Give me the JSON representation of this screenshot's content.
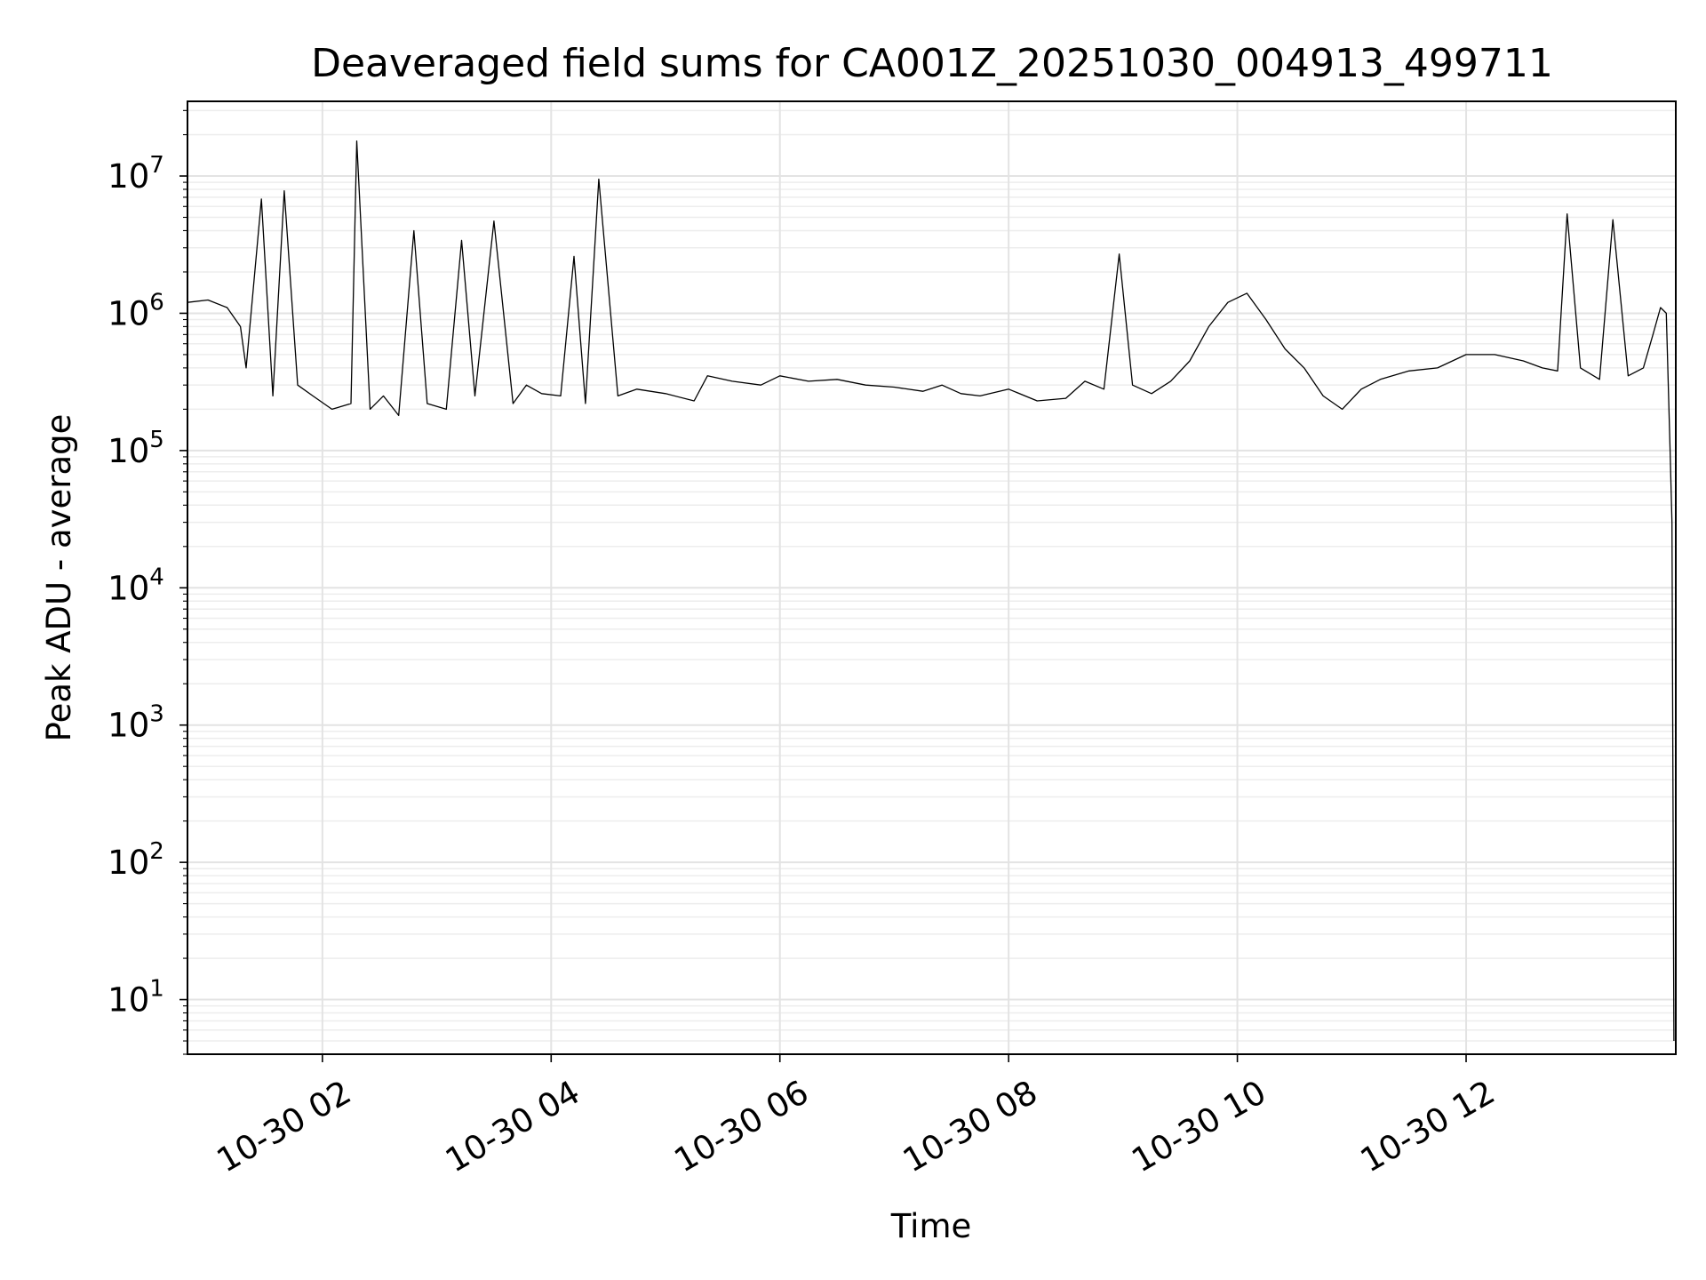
{
  "chart_data": {
    "type": "line",
    "title": "Deaveraged field sums for CA001Z_20251030_004913_499711",
    "xlabel": "Time",
    "ylabel": "Peak ADU - average",
    "yscale": "log",
    "grid": true,
    "grid_minor": true,
    "xlim": [
      "2025-10-30T00:49:13",
      "2025-10-30T13:50:00"
    ],
    "ylim": [
      4,
      35000000
    ],
    "x_ticks": [
      {
        "value": "2025-10-30T02:00:00",
        "label": "10-30 02"
      },
      {
        "value": "2025-10-30T04:00:00",
        "label": "10-30 04"
      },
      {
        "value": "2025-10-30T06:00:00",
        "label": "10-30 06"
      },
      {
        "value": "2025-10-30T08:00:00",
        "label": "10-30 08"
      },
      {
        "value": "2025-10-30T10:00:00",
        "label": "10-30 10"
      },
      {
        "value": "2025-10-30T12:00:00",
        "label": "10-30 12"
      }
    ],
    "y_ticks": [
      {
        "value": 10,
        "base": "10",
        "exp": "1"
      },
      {
        "value": 100,
        "base": "10",
        "exp": "2"
      },
      {
        "value": 1000,
        "base": "10",
        "exp": "3"
      },
      {
        "value": 10000,
        "base": "10",
        "exp": "4"
      },
      {
        "value": 100000,
        "base": "10",
        "exp": "5"
      },
      {
        "value": 1000000,
        "base": "10",
        "exp": "6"
      },
      {
        "value": 10000000,
        "base": "10",
        "exp": "7"
      }
    ],
    "line_color": "#000000",
    "series": [
      {
        "x": [
          "2025-10-30T00:49:13",
          "2025-10-30T01:00:00",
          "2025-10-30T01:10:00",
          "2025-10-30T01:17:00",
          "2025-10-30T01:20:00",
          "2025-10-30T01:28:00",
          "2025-10-30T01:34:00",
          "2025-10-30T01:40:00",
          "2025-10-30T01:47:00",
          "2025-10-30T01:55:00",
          "2025-10-30T02:05:00",
          "2025-10-30T02:15:00",
          "2025-10-30T02:18:00",
          "2025-10-30T02:25:00",
          "2025-10-30T02:32:00",
          "2025-10-30T02:40:00",
          "2025-10-30T02:48:00",
          "2025-10-30T02:55:00",
          "2025-10-30T03:05:00",
          "2025-10-30T03:13:00",
          "2025-10-30T03:20:00",
          "2025-10-30T03:30:00",
          "2025-10-30T03:40:00",
          "2025-10-30T03:47:00",
          "2025-10-30T03:55:00",
          "2025-10-30T04:05:00",
          "2025-10-30T04:12:00",
          "2025-10-30T04:18:00",
          "2025-10-30T04:25:00",
          "2025-10-30T04:35:00",
          "2025-10-30T04:45:00",
          "2025-10-30T05:00:00",
          "2025-10-30T05:15:00",
          "2025-10-30T05:22:00",
          "2025-10-30T05:35:00",
          "2025-10-30T05:50:00",
          "2025-10-30T06:00:00",
          "2025-10-30T06:15:00",
          "2025-10-30T06:30:00",
          "2025-10-30T06:45:00",
          "2025-10-30T07:00:00",
          "2025-10-30T07:15:00",
          "2025-10-30T07:25:00",
          "2025-10-30T07:35:00",
          "2025-10-30T07:45:00",
          "2025-10-30T08:00:00",
          "2025-10-30T08:15:00",
          "2025-10-30T08:30:00",
          "2025-10-30T08:40:00",
          "2025-10-30T08:50:00",
          "2025-10-30T08:58:00",
          "2025-10-30T09:05:00",
          "2025-10-30T09:15:00",
          "2025-10-30T09:25:00",
          "2025-10-30T09:35:00",
          "2025-10-30T09:45:00",
          "2025-10-30T09:55:00",
          "2025-10-30T10:05:00",
          "2025-10-30T10:15:00",
          "2025-10-30T10:25:00",
          "2025-10-30T10:35:00",
          "2025-10-30T10:45:00",
          "2025-10-30T10:55:00",
          "2025-10-30T11:05:00",
          "2025-10-30T11:15:00",
          "2025-10-30T11:30:00",
          "2025-10-30T11:45:00",
          "2025-10-30T12:00:00",
          "2025-10-30T12:15:00",
          "2025-10-30T12:30:00",
          "2025-10-30T12:40:00",
          "2025-10-30T12:48:00",
          "2025-10-30T12:53:00",
          "2025-10-30T13:00:00",
          "2025-10-30T13:10:00",
          "2025-10-30T13:17:00",
          "2025-10-30T13:25:00",
          "2025-10-30T13:33:00",
          "2025-10-30T13:38:00",
          "2025-10-30T13:42:00",
          "2025-10-30T13:45:00",
          "2025-10-30T13:47:00",
          "2025-10-30T13:48:00",
          "2025-10-30T13:49:00"
        ],
        "y": [
          1200000,
          1250000,
          1100000,
          800000,
          400000,
          6800000,
          250000,
          7800000,
          300000,
          250000,
          200000,
          220000,
          18000000,
          200000,
          250000,
          180000,
          4000000,
          220000,
          200000,
          3400000,
          250000,
          4700000,
          220000,
          300000,
          260000,
          250000,
          2600000,
          220000,
          9500000,
          250000,
          280000,
          260000,
          230000,
          350000,
          320000,
          300000,
          350000,
          320000,
          330000,
          300000,
          290000,
          270000,
          300000,
          260000,
          250000,
          280000,
          230000,
          240000,
          320000,
          280000,
          2700000,
          300000,
          260000,
          320000,
          450000,
          800000,
          1200000,
          1400000,
          900000,
          550000,
          400000,
          250000,
          200000,
          280000,
          330000,
          380000,
          400000,
          500000,
          500000,
          450000,
          400000,
          380000,
          5300000,
          400000,
          330000,
          4800000,
          350000,
          400000,
          700000,
          1100000,
          1000000,
          100000,
          30000,
          5
        ]
      }
    ]
  }
}
